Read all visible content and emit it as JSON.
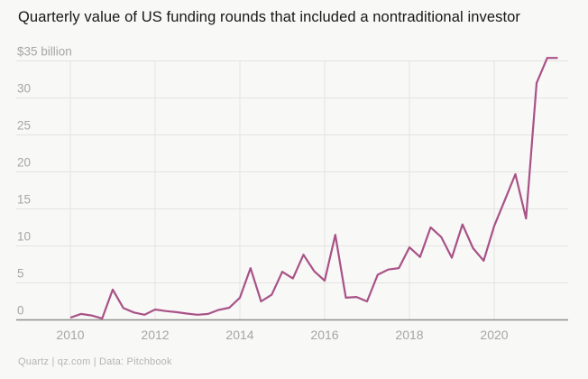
{
  "title": "Quarterly value of US funding rounds that included a nontraditional investor",
  "source": "Quartz | qz.com | Data: Pitchbook",
  "colors": {
    "background": "#f8f8f7",
    "line": "#a85287",
    "grid": "#e5e4e2",
    "zero_axis": "#8e8e8c",
    "tick_label": "#a6a6a4",
    "title": "#171717",
    "source": "#b4b4b2"
  },
  "chart_data": {
    "type": "line",
    "title": "Quarterly value of US funding rounds that included a nontraditional investor",
    "ylabel": "$ billion",
    "xlabel": "",
    "ylim": [
      0,
      35
    ],
    "grid": true,
    "legend": "none",
    "y_axis": {
      "top_label": "$35 billion",
      "ticks": [
        0,
        5,
        10,
        15,
        20,
        25,
        30,
        35
      ]
    },
    "x_axis": {
      "tick_labels": [
        "2010",
        "2012",
        "2014",
        "2016",
        "2018",
        "2020"
      ],
      "start": "2010 Q1",
      "end": "2021 Q3"
    },
    "x": [
      "2010 Q1",
      "2010 Q2",
      "2010 Q3",
      "2010 Q4",
      "2011 Q1",
      "2011 Q2",
      "2011 Q3",
      "2011 Q4",
      "2012 Q1",
      "2012 Q2",
      "2012 Q3",
      "2012 Q4",
      "2013 Q1",
      "2013 Q2",
      "2013 Q3",
      "2013 Q4",
      "2014 Q1",
      "2014 Q2",
      "2014 Q3",
      "2014 Q4",
      "2015 Q1",
      "2015 Q2",
      "2015 Q3",
      "2015 Q4",
      "2016 Q1",
      "2016 Q2",
      "2016 Q3",
      "2016 Q4",
      "2017 Q1",
      "2017 Q2",
      "2017 Q3",
      "2017 Q4",
      "2018 Q1",
      "2018 Q2",
      "2018 Q3",
      "2018 Q4",
      "2019 Q1",
      "2019 Q2",
      "2019 Q3",
      "2019 Q4",
      "2020 Q1",
      "2020 Q2",
      "2020 Q3",
      "2020 Q4",
      "2021 Q1",
      "2021 Q2",
      "2021 Q3"
    ],
    "values": [
      0.3,
      0.8,
      0.6,
      0.2,
      4.1,
      1.6,
      1.0,
      0.7,
      1.4,
      1.2,
      1.05,
      0.85,
      0.7,
      0.8,
      1.35,
      1.65,
      3.0,
      7.0,
      2.5,
      3.4,
      6.5,
      5.6,
      8.8,
      6.6,
      5.3,
      11.5,
      3.0,
      3.1,
      2.5,
      6.1,
      6.8,
      7.0,
      9.8,
      8.5,
      12.5,
      11.2,
      8.4,
      12.9,
      9.7,
      8.0,
      12.7,
      16.2,
      19.7,
      13.7,
      32.0,
      35.4,
      35.4
    ]
  }
}
